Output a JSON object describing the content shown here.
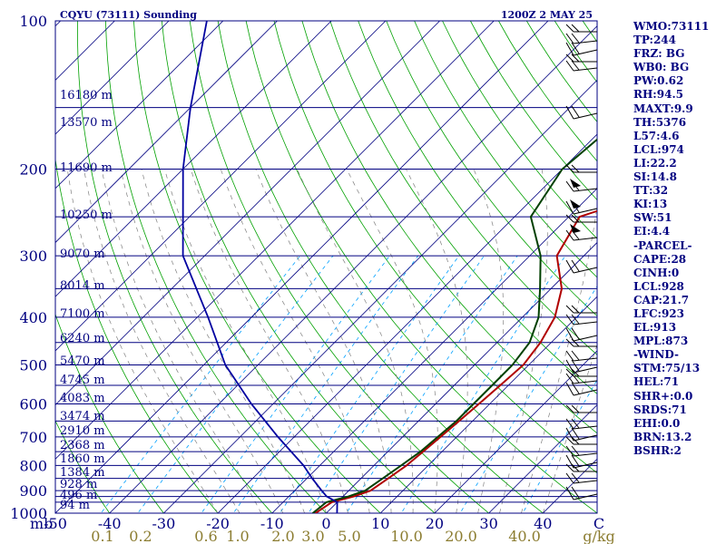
{
  "header": {
    "station": "CQYU (73111) Sounding",
    "time": "1200Z  2 MAY 25"
  },
  "axes": {
    "pressure_unit": "mb",
    "pressure_ticks": [
      "100",
      "200",
      "300",
      "400",
      "500",
      "600",
      "700",
      "800",
      "900",
      "1000"
    ],
    "temperature_ticks": [
      "-50",
      "-40",
      "-30",
      "-20",
      "-10",
      "0",
      "10",
      "20",
      "30",
      "40"
    ],
    "mixing_ratio_unit": "g/kg",
    "mixing_ratio_ticks": [
      "0.1",
      "0.2",
      "0.6",
      "1.0",
      "2.0",
      "3.0",
      "5.0",
      "10.0",
      "20.0",
      "40.0"
    ],
    "corner_label": "C"
  },
  "height_labels": [
    "16180 m",
    "13570 m",
    "11690 m",
    "10250 m",
    "9070 m",
    "8014 m",
    "7100 m",
    "6240 m",
    "5470 m",
    "4745 m",
    "4083 m",
    "3474 m",
    "2910 m",
    "2368 m",
    "1860 m",
    "1384 m",
    "928 m",
    "496 m",
    "94 m"
  ],
  "stats": [
    "WMO:73111",
    "TP:244",
    "FRZ: BG",
    "WB0: BG",
    "PW:0.62",
    "RH:94.5",
    "MAXT:9.9",
    "TH:5376",
    "L57:4.6",
    "LCL:974",
    "LI:22.2",
    "SI:14.8",
    "TT:32",
    "KI:13",
    "SW:51",
    "EI:4.4",
    "-PARCEL-",
    "CAPE:28",
    "CINH:0",
    "LCL:928",
    "CAP:21.7",
    "LFC:923",
    "EL:913",
    "MPL:873",
    "-WIND-",
    "STM:75/13",
    "HEL:71",
    "SHR+:0.0",
    "SRDS:71",
    "EHI:0.0",
    "BRN:13.2",
    "BSHR:2"
  ],
  "colors": {
    "isobar": "#000080",
    "isotherm": "#000080",
    "dry_adiabat": "#00a000",
    "mixing_ratio": "#00a0ff",
    "moist_adiabat": "#808080",
    "temperature": "#b00000",
    "dewpoint": "#004000",
    "parcel": "#0000a0",
    "wind_barbs": "#000000",
    "text_blue": "#000080",
    "text_olive": "#8b7c30"
  },
  "chart_data": {
    "type": "skew-t",
    "title": "CQYU (73111) Sounding",
    "subtitle": "1200Z  2 MAY 25",
    "xlabel": "",
    "ylabel": "mb",
    "x_range_celsius": [
      -50,
      50
    ],
    "pressure_range_mb": [
      100,
      1000
    ],
    "pressure_scale": "log",
    "temperature": {
      "p": [
        1000,
        950,
        925,
        900,
        850,
        800,
        750,
        700,
        650,
        600,
        550,
        500,
        450,
        400,
        350,
        300,
        250,
        200,
        150,
        100
      ],
      "t": [
        -2,
        -1,
        2,
        4,
        5,
        6,
        6.5,
        7,
        7.5,
        8,
        8.5,
        9,
        8,
        6,
        2,
        -5,
        -8,
        10,
        18,
        25
      ]
    },
    "dewpoint": {
      "p": [
        1000,
        950,
        925,
        900,
        850,
        800,
        750,
        700,
        650,
        600,
        550,
        500,
        450,
        400,
        350,
        300,
        250,
        200,
        150,
        100
      ],
      "td": [
        -2.5,
        -2,
        1,
        3,
        4,
        5,
        6,
        6.5,
        7,
        7,
        7,
        7,
        6,
        3,
        -2,
        -8,
        -17,
        -20,
        -18,
        -15
      ]
    },
    "parcel": {
      "p": [
        1000,
        950,
        925,
        900,
        850,
        800,
        700,
        600,
        500,
        400,
        300,
        200,
        150,
        100
      ],
      "t": [
        2,
        0,
        -3,
        -5,
        -9,
        -13,
        -23,
        -34,
        -46,
        -58,
        -74,
        -90,
        -100,
        -113
      ]
    },
    "wind_barbs_side": "right",
    "grid": true
  }
}
